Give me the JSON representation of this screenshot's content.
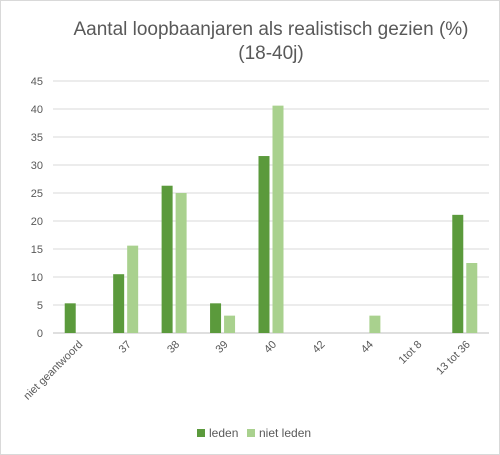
{
  "chart_data": {
    "type": "bar",
    "title": "Aantal loopbaanjaren als realistisch gezien (%)",
    "subtitle": "(18-40j)",
    "xlabel": "",
    "ylabel": "",
    "ylim": [
      0,
      45
    ],
    "yticks": [
      0,
      5,
      10,
      15,
      20,
      25,
      30,
      35,
      40,
      45
    ],
    "grid": true,
    "legend_position": "bottom",
    "categories": [
      "niet geantwoord",
      "37",
      "38",
      "39",
      "40",
      "42",
      "44",
      "1tot 8",
      "13 tot 36"
    ],
    "series": [
      {
        "name": "leden",
        "color": "#5b9a3c",
        "values": [
          5.3,
          10.5,
          26.3,
          5.3,
          31.6,
          0,
          0,
          0,
          21.1
        ]
      },
      {
        "name": "niet leden",
        "color": "#a9d18e",
        "values": [
          0,
          15.6,
          25.0,
          3.1,
          40.6,
          0,
          3.1,
          0,
          12.5
        ]
      }
    ]
  }
}
